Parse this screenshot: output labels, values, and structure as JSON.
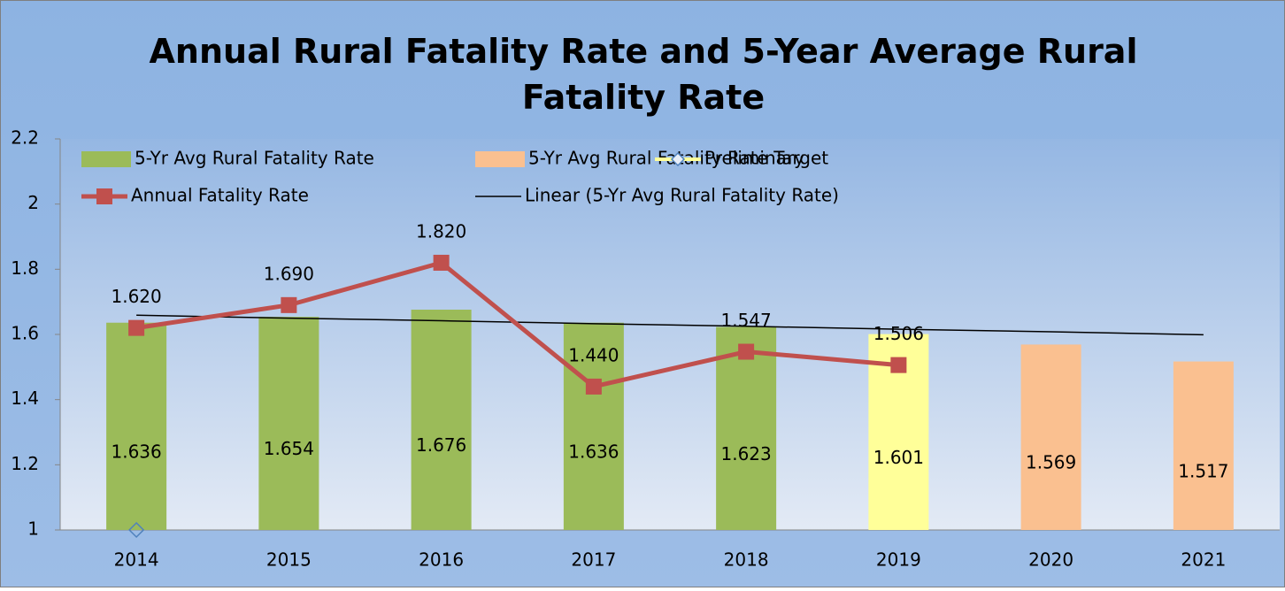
{
  "chart_data": {
    "type": "bar",
    "title": "Annual Rural Fatality Rate and 5-Year Average Rural Fatality Rate",
    "categories": [
      "2014",
      "2015",
      "2016",
      "2017",
      "2018",
      "2019",
      "2020",
      "2021"
    ],
    "ylim": [
      1,
      2.2
    ],
    "yticks": [
      1,
      1.2,
      1.4,
      1.6,
      1.8,
      2,
      2.2
    ],
    "grid": false,
    "legend": "top-left",
    "series": [
      {
        "name": "5-Yr Avg Rural Fatality Rate",
        "type": "bar",
        "color": "#9bbb59",
        "colors": [
          "#9bbb59",
          "#9bbb59",
          "#9bbb59",
          "#9bbb59",
          "#9bbb59",
          "#ffff99",
          null,
          null
        ],
        "values": [
          1.636,
          1.654,
          1.676,
          1.636,
          1.623,
          1.601,
          null,
          null
        ]
      },
      {
        "name": "5-Yr Avg Rural Fatality Rate Target",
        "type": "bar",
        "color": "#fac090",
        "values": [
          null,
          null,
          null,
          null,
          null,
          null,
          1.569,
          1.517
        ]
      },
      {
        "name": "Preliminary",
        "type": "marker",
        "color": "#ffff99",
        "marker_color": "#4f81bd",
        "values": [
          1,
          null,
          null,
          null,
          null,
          null,
          null,
          null
        ]
      },
      {
        "name": "Annual Fatality Rate",
        "type": "line",
        "color": "#c0504d",
        "values": [
          1.62,
          1.69,
          1.82,
          1.44,
          1.547,
          1.506,
          null,
          null
        ],
        "value_labels": [
          "1.620",
          "1.690",
          "1.820",
          "1.440",
          "1.547",
          "1.506",
          null,
          null
        ]
      },
      {
        "name": "Linear (5-Yr Avg Rural Fatality Rate)",
        "type": "trend",
        "color": "#000000",
        "values": [
          1.659,
          1.65,
          1.642,
          1.633,
          1.625,
          1.616,
          1.608,
          1.599
        ]
      }
    ]
  }
}
